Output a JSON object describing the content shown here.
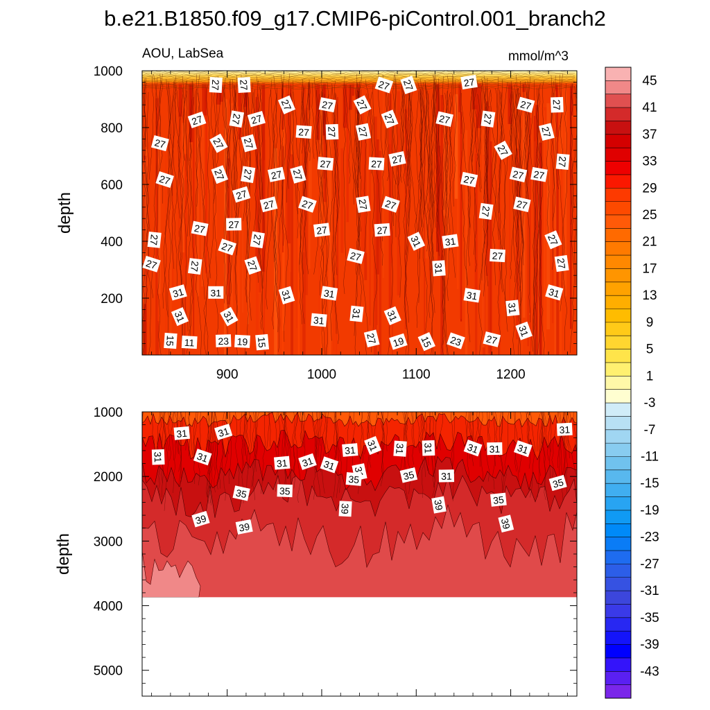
{
  "chart_data": {
    "type": "heatmap",
    "title": "b.e21.B1850.f09_g17.CMIP6-piControl.001_branch2",
    "subtitle_left": "AOU, LabSea",
    "subtitle_right": "mmol/m^3",
    "x_range": [
      810,
      1270
    ],
    "x_ticks": [
      "900",
      "1000",
      "1100",
      "1200"
    ],
    "panels": [
      {
        "name": "upper",
        "ylabel": "depth",
        "ylim": [
          1000,
          0
        ],
        "y_ticks": [
          "200",
          "400",
          "600",
          "800",
          "1000"
        ],
        "contour_labels": [
          {
            "text": "15",
            "x": 840,
            "y": 50
          },
          {
            "text": "11",
            "x": 860,
            "y": 45
          },
          {
            "text": "23",
            "x": 896,
            "y": 50
          },
          {
            "text": "19",
            "x": 916,
            "y": 48
          },
          {
            "text": "15",
            "x": 937,
            "y": 45
          },
          {
            "text": "27",
            "x": 1053,
            "y": 58
          },
          {
            "text": "19",
            "x": 1081,
            "y": 47
          },
          {
            "text": "15",
            "x": 1111,
            "y": 47
          },
          {
            "text": "23",
            "x": 1142,
            "y": 50
          },
          {
            "text": "27",
            "x": 1180,
            "y": 55
          },
          {
            "text": "31",
            "x": 1214,
            "y": 85
          },
          {
            "text": "31",
            "x": 850,
            "y": 135
          },
          {
            "text": "31",
            "x": 902,
            "y": 135
          },
          {
            "text": "31",
            "x": 997,
            "y": 123
          },
          {
            "text": "31",
            "x": 1037,
            "y": 145
          },
          {
            "text": "31",
            "x": 1075,
            "y": 138
          },
          {
            "text": "31",
            "x": 1202,
            "y": 165
          },
          {
            "text": "31",
            "x": 848,
            "y": 220
          },
          {
            "text": "31",
            "x": 888,
            "y": 220
          },
          {
            "text": "31",
            "x": 963,
            "y": 210
          },
          {
            "text": "31",
            "x": 1008,
            "y": 217
          },
          {
            "text": "31",
            "x": 1159,
            "y": 210
          },
          {
            "text": "31",
            "x": 1246,
            "y": 220
          },
          {
            "text": "27",
            "x": 820,
            "y": 320
          },
          {
            "text": "27",
            "x": 866,
            "y": 312
          },
          {
            "text": "27",
            "x": 927,
            "y": 315
          },
          {
            "text": "31",
            "x": 1124,
            "y": 305
          },
          {
            "text": "27",
            "x": 1254,
            "y": 322
          },
          {
            "text": "27",
            "x": 1036,
            "y": 348
          },
          {
            "text": "27",
            "x": 1186,
            "y": 350
          },
          {
            "text": "27",
            "x": 823,
            "y": 405
          },
          {
            "text": "27",
            "x": 900,
            "y": 380
          },
          {
            "text": "27",
            "x": 932,
            "y": 405
          },
          {
            "text": "31",
            "x": 1100,
            "y": 400
          },
          {
            "text": "31",
            "x": 1136,
            "y": 400
          },
          {
            "text": "27",
            "x": 1245,
            "y": 405
          },
          {
            "text": "27",
            "x": 871,
            "y": 445
          },
          {
            "text": "27",
            "x": 907,
            "y": 460
          },
          {
            "text": "27",
            "x": 1000,
            "y": 440
          },
          {
            "text": "27",
            "x": 1064,
            "y": 440
          },
          {
            "text": "27",
            "x": 944,
            "y": 530
          },
          {
            "text": "27",
            "x": 985,
            "y": 530
          },
          {
            "text": "27",
            "x": 1044,
            "y": 530
          },
          {
            "text": "27",
            "x": 1073,
            "y": 530
          },
          {
            "text": "27",
            "x": 1174,
            "y": 505
          },
          {
            "text": "27",
            "x": 1212,
            "y": 530
          },
          {
            "text": "27",
            "x": 915,
            "y": 565
          },
          {
            "text": "27",
            "x": 834,
            "y": 617
          },
          {
            "text": "27",
            "x": 892,
            "y": 635
          },
          {
            "text": "27",
            "x": 922,
            "y": 635
          },
          {
            "text": "27",
            "x": 952,
            "y": 635
          },
          {
            "text": "27",
            "x": 975,
            "y": 635
          },
          {
            "text": "27",
            "x": 1156,
            "y": 617
          },
          {
            "text": "27",
            "x": 1208,
            "y": 635
          },
          {
            "text": "27",
            "x": 1230,
            "y": 635
          },
          {
            "text": "27",
            "x": 1004,
            "y": 673
          },
          {
            "text": "27",
            "x": 1058,
            "y": 673
          },
          {
            "text": "27",
            "x": 1080,
            "y": 690
          },
          {
            "text": "27",
            "x": 1255,
            "y": 680
          },
          {
            "text": "27",
            "x": 1192,
            "y": 720
          },
          {
            "text": "27",
            "x": 829,
            "y": 745
          },
          {
            "text": "27",
            "x": 891,
            "y": 745
          },
          {
            "text": "27",
            "x": 923,
            "y": 745
          },
          {
            "text": "27",
            "x": 981,
            "y": 785
          },
          {
            "text": "27",
            "x": 1011,
            "y": 785
          },
          {
            "text": "27",
            "x": 1044,
            "y": 785
          },
          {
            "text": "27",
            "x": 1238,
            "y": 785
          },
          {
            "text": "27",
            "x": 868,
            "y": 827
          },
          {
            "text": "27",
            "x": 910,
            "y": 830
          },
          {
            "text": "27",
            "x": 931,
            "y": 830
          },
          {
            "text": "27",
            "x": 1072,
            "y": 830
          },
          {
            "text": "27",
            "x": 1130,
            "y": 830
          },
          {
            "text": "27",
            "x": 1176,
            "y": 830
          },
          {
            "text": "27",
            "x": 963,
            "y": 880
          },
          {
            "text": "27",
            "x": 1006,
            "y": 880
          },
          {
            "text": "27",
            "x": 1043,
            "y": 880
          },
          {
            "text": "27",
            "x": 1216,
            "y": 880
          },
          {
            "text": "27",
            "x": 1249,
            "y": 880
          },
          {
            "text": "27",
            "x": 888,
            "y": 950
          },
          {
            "text": "27",
            "x": 918,
            "y": 950
          },
          {
            "text": "27",
            "x": 1066,
            "y": 950
          },
          {
            "text": "27",
            "x": 1092,
            "y": 950
          },
          {
            "text": "27",
            "x": 1156,
            "y": 960
          }
        ]
      },
      {
        "name": "lower",
        "ylabel": "depth",
        "ylim": [
          1000,
          5400
        ],
        "y_ticks": [
          "1000",
          "2000",
          "3000",
          "4000",
          "5000"
        ],
        "data_bottom_depth": 3870,
        "contour_labels": [
          {
            "text": "31",
            "x": 852,
            "y": 1330
          },
          {
            "text": "31",
            "x": 896,
            "y": 1310
          },
          {
            "text": "31",
            "x": 1054,
            "y": 1520
          },
          {
            "text": "31",
            "x": 1083,
            "y": 1570
          },
          {
            "text": "31",
            "x": 1113,
            "y": 1560
          },
          {
            "text": "31",
            "x": 1160,
            "y": 1560
          },
          {
            "text": "31",
            "x": 1183,
            "y": 1570
          },
          {
            "text": "31",
            "x": 1213,
            "y": 1570
          },
          {
            "text": "31",
            "x": 1257,
            "y": 1270
          },
          {
            "text": "31",
            "x": 827,
            "y": 1700
          },
          {
            "text": "31",
            "x": 874,
            "y": 1700
          },
          {
            "text": "31",
            "x": 1030,
            "y": 1590
          },
          {
            "text": "31",
            "x": 1008,
            "y": 1820
          },
          {
            "text": "31",
            "x": 985,
            "y": 1770
          },
          {
            "text": "31",
            "x": 958,
            "y": 1790
          },
          {
            "text": "31",
            "x": 1040,
            "y": 1930
          },
          {
            "text": "31",
            "x": 1132,
            "y": 1990
          },
          {
            "text": "35",
            "x": 1034,
            "y": 2040
          },
          {
            "text": "35",
            "x": 1092,
            "y": 1980
          },
          {
            "text": "35",
            "x": 915,
            "y": 2260
          },
          {
            "text": "35",
            "x": 961,
            "y": 2220
          },
          {
            "text": "35",
            "x": 1250,
            "y": 2100
          },
          {
            "text": "35",
            "x": 1187,
            "y": 2360
          },
          {
            "text": "39",
            "x": 1025,
            "y": 2500
          },
          {
            "text": "39",
            "x": 1124,
            "y": 2440
          },
          {
            "text": "39",
            "x": 872,
            "y": 2660
          },
          {
            "text": "39",
            "x": 918,
            "y": 2780
          },
          {
            "text": "39",
            "x": 1195,
            "y": 2730
          }
        ]
      }
    ],
    "colorbar": {
      "levels_top_to_bottom": [
        47,
        45,
        43,
        41,
        39,
        37,
        35,
        33,
        31,
        29,
        27,
        25,
        23,
        21,
        19,
        17,
        15,
        13,
        11,
        9,
        7,
        5,
        3,
        1,
        -1,
        -3,
        -5,
        -7,
        -9,
        -11,
        -13,
        -15,
        -17,
        -19,
        -21,
        -23,
        -25,
        -27,
        -29,
        -31,
        -33,
        -35,
        -37,
        -39,
        -41,
        -43,
        -45
      ],
      "labels": [
        "45",
        "41",
        "37",
        "33",
        "29",
        "25",
        "21",
        "17",
        "13",
        "9",
        "5",
        "1",
        "-3",
        "-7",
        "-11",
        "-15",
        "-19",
        "-23",
        "-27",
        "-31",
        "-35",
        "-39",
        "-43"
      ],
      "colors": [
        "#f9b2b2",
        "#f08888",
        "#e05050",
        "#d42a2a",
        "#c81010",
        "#d40000",
        "#e00000",
        "#ee0000",
        "#fb1800",
        "#fd3a00",
        "#fd4a00",
        "#ff5a08",
        "#ff6a00",
        "#ff7a00",
        "#ff8800",
        "#ff9500",
        "#ffa200",
        "#ffae00",
        "#ffbc00",
        "#ffca18",
        "#ffd630",
        "#ffe44a",
        "#fff070",
        "#fff8a8",
        "#fffed0",
        "#d0ecf8",
        "#b8e0f4",
        "#a0d6f2",
        "#88ccf0",
        "#70c2ee",
        "#58b8ee",
        "#40aef0",
        "#28a4f2",
        "#109af4",
        "#008af8",
        "#0a7cf6",
        "#1e6cf0",
        "#2c5ee8",
        "#3652e2",
        "#3c46dc",
        "#3a3ae8",
        "#2828f2",
        "#1414fa",
        "#0000ff",
        "#3414fa",
        "#5a20f2",
        "#7a26ea"
      ]
    }
  }
}
